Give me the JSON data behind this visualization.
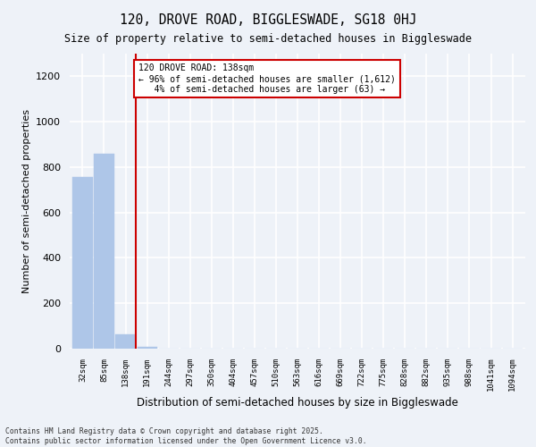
{
  "title_line1": "120, DROVE ROAD, BIGGLESWADE, SG18 0HJ",
  "title_line2": "Size of property relative to semi-detached houses in Biggleswade",
  "xlabel": "Distribution of semi-detached houses by size in Biggleswade",
  "ylabel": "Number of semi-detached properties",
  "categories": [
    "32sqm",
    "85sqm",
    "138sqm",
    "191sqm",
    "244sqm",
    "297sqm",
    "350sqm",
    "404sqm",
    "457sqm",
    "510sqm",
    "563sqm",
    "616sqm",
    "669sqm",
    "722sqm",
    "775sqm",
    "828sqm",
    "882sqm",
    "935sqm",
    "988sqm",
    "1041sqm",
    "1094sqm"
  ],
  "values": [
    757,
    860,
    63,
    8,
    0,
    0,
    0,
    0,
    0,
    0,
    0,
    0,
    0,
    0,
    0,
    0,
    0,
    0,
    0,
    0,
    0
  ],
  "bar_color": "#aec6e8",
  "bar_edgecolor": "#aec6e8",
  "highlight_index": 2,
  "highlight_line_color": "#cc0000",
  "annotation_text": "120 DROVE ROAD: 138sqm\n← 96% of semi-detached houses are smaller (1,612)\n   4% of semi-detached houses are larger (63) →",
  "annotation_box_color": "#ffffff",
  "annotation_box_edgecolor": "#cc0000",
  "ylim": [
    0,
    1300
  ],
  "yticks": [
    0,
    200,
    400,
    600,
    800,
    1000,
    1200
  ],
  "background_color": "#eef2f8",
  "grid_color": "#ffffff",
  "footer_line1": "Contains HM Land Registry data © Crown copyright and database right 2025.",
  "footer_line2": "Contains public sector information licensed under the Open Government Licence v3.0."
}
